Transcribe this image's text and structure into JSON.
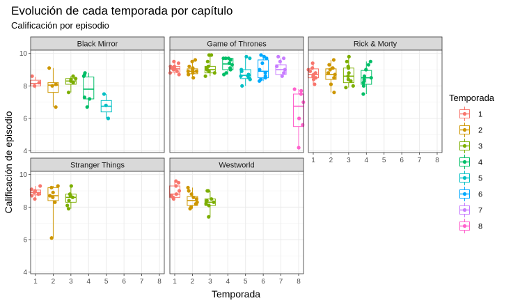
{
  "chart_data": {
    "type": "boxplot+jitter",
    "title": "Evolución de cada temporada por capítulo",
    "subtitle": "Calificación por episodio",
    "xlabel": "Temporada",
    "ylabel": "Calificación de episodio",
    "x_categories": [
      "1",
      "2",
      "3",
      "4",
      "5",
      "6",
      "7",
      "8"
    ],
    "ylim": [
      3.9,
      10.2
    ],
    "y_ticks": [
      4,
      6,
      8,
      10
    ],
    "legend": {
      "title": "Temporada",
      "placement": "right",
      "entries": [
        "1",
        "2",
        "3",
        "4",
        "5",
        "6",
        "7",
        "8"
      ]
    },
    "season_colors": {
      "1": "#F8766D",
      "2": "#CD9600",
      "3": "#7CAE00",
      "4": "#00BE67",
      "5": "#00BFC4",
      "6": "#00A9FF",
      "7": "#C77CFF",
      "8": "#FF61CC"
    },
    "panels": [
      {
        "name": "Black Mirror",
        "seasons": [
          {
            "season": 1,
            "q1": 8.0,
            "median": 8.15,
            "q3": 8.35,
            "lower": 7.85,
            "upper": 8.55,
            "points": [
              8.0,
              8.2,
              8.6
            ]
          },
          {
            "season": 2,
            "q1": 7.6,
            "median": 8.05,
            "q3": 8.2,
            "lower": 6.7,
            "upper": 9.1,
            "points": [
              6.7,
              8.0,
              8.1,
              9.1
            ]
          },
          {
            "season": 3,
            "q1": 8.1,
            "median": 8.3,
            "q3": 8.45,
            "lower": 7.6,
            "upper": 8.6,
            "points": [
              7.6,
              8.2,
              8.3,
              8.4,
              8.45,
              8.6
            ]
          },
          {
            "season": 4,
            "q1": 7.2,
            "median": 7.8,
            "q3": 8.55,
            "lower": 6.7,
            "upper": 8.8,
            "points": [
              6.7,
              7.2,
              7.3,
              8.6,
              8.7,
              8.8
            ]
          },
          {
            "season": 5,
            "q1": 6.4,
            "median": 6.75,
            "q3": 7.1,
            "lower": 6.0,
            "upper": 7.5,
            "points": [
              6.0,
              6.8,
              7.5
            ]
          }
        ]
      },
      {
        "name": "Game of Thrones",
        "seasons": [
          {
            "season": 1,
            "q1": 8.85,
            "median": 9.05,
            "q3": 9.2,
            "lower": 8.7,
            "upper": 9.5,
            "points": [
              8.7,
              8.8,
              8.9,
              9.0,
              9.05,
              9.1,
              9.2,
              9.2,
              9.4,
              9.5
            ]
          },
          {
            "season": 2,
            "q1": 8.75,
            "median": 8.9,
            "q3": 9.05,
            "lower": 8.5,
            "upper": 9.6,
            "points": [
              8.5,
              8.7,
              8.8,
              8.9,
              8.9,
              9.0,
              9.1,
              9.2,
              9.5,
              9.6
            ]
          },
          {
            "season": 3,
            "q1": 8.8,
            "median": 9.0,
            "q3": 9.2,
            "lower": 8.6,
            "upper": 9.9,
            "points": [
              8.6,
              8.8,
              8.9,
              9.0,
              9.0,
              9.1,
              9.2,
              9.5,
              9.9,
              9.9
            ]
          },
          {
            "season": 4,
            "q1": 9.0,
            "median": 9.35,
            "q3": 9.7,
            "lower": 8.7,
            "upper": 9.7,
            "points": [
              8.7,
              8.8,
              9.0,
              9.1,
              9.3,
              9.4,
              9.6,
              9.7,
              9.7,
              9.7
            ]
          },
          {
            "season": 5,
            "q1": 8.45,
            "median": 8.65,
            "q3": 9.0,
            "lower": 8.0,
            "upper": 9.8,
            "points": [
              8.0,
              8.4,
              8.5,
              8.6,
              8.6,
              8.7,
              8.9,
              9.0,
              9.7,
              9.8
            ]
          },
          {
            "season": 6,
            "q1": 8.5,
            "median": 8.9,
            "q3": 9.6,
            "lower": 8.3,
            "upper": 9.9,
            "points": [
              8.3,
              8.4,
              8.5,
              8.6,
              8.8,
              9.0,
              9.4,
              9.7,
              9.8,
              9.9
            ]
          },
          {
            "season": 7,
            "q1": 8.7,
            "median": 9.0,
            "q3": 9.3,
            "lower": 8.6,
            "upper": 9.7,
            "points": [
              8.6,
              8.8,
              9.0,
              9.2,
              9.5,
              9.7,
              9.8
            ]
          },
          {
            "season": 8,
            "q1": 5.5,
            "median": 6.75,
            "q3": 7.5,
            "lower": 4.2,
            "upper": 7.8,
            "points": [
              4.2,
              5.6,
              6.0,
              7.0,
              7.5,
              7.7,
              7.8
            ]
          }
        ]
      },
      {
        "name": "Rick & Morty",
        "seasons": [
          {
            "season": 1,
            "q1": 8.5,
            "median": 8.7,
            "q3": 9.05,
            "lower": 8.1,
            "upper": 9.4,
            "points": [
              8.1,
              8.4,
              8.5,
              8.6,
              8.7,
              8.8,
              8.9,
              9.0,
              9.1,
              9.4
            ]
          },
          {
            "season": 2,
            "q1": 8.4,
            "median": 8.7,
            "q3": 9.05,
            "lower": 7.6,
            "upper": 9.6,
            "points": [
              7.6,
              8.1,
              8.5,
              8.7,
              8.8,
              9.0,
              9.1,
              9.3,
              9.6
            ]
          },
          {
            "season": 3,
            "q1": 8.2,
            "median": 8.6,
            "q3": 9.1,
            "lower": 7.9,
            "upper": 9.8,
            "points": [
              7.9,
              8.0,
              8.3,
              8.4,
              8.6,
              8.8,
              9.1,
              9.2,
              9.5,
              9.8
            ]
          },
          {
            "season": 4,
            "q1": 8.1,
            "median": 8.5,
            "q3": 8.95,
            "lower": 7.5,
            "upper": 9.5,
            "points": [
              7.5,
              8.0,
              8.2,
              8.3,
              8.4,
              8.5,
              8.6,
              9.0,
              9.3,
              9.5
            ]
          }
        ]
      },
      {
        "name": "Stranger Things",
        "seasons": [
          {
            "season": 1,
            "q1": 8.75,
            "median": 8.9,
            "q3": 9.05,
            "lower": 8.5,
            "upper": 9.3,
            "points": [
              8.5,
              8.7,
              8.8,
              8.9,
              9.0,
              9.1,
              9.3
            ]
          },
          {
            "season": 2,
            "q1": 8.4,
            "median": 8.7,
            "q3": 9.2,
            "lower": 6.1,
            "upper": 9.3,
            "points": [
              6.1,
              6.1,
              8.3,
              8.6,
              8.7,
              8.9,
              9.2,
              9.3
            ]
          },
          {
            "season": 3,
            "q1": 8.3,
            "median": 8.6,
            "q3": 8.8,
            "lower": 7.9,
            "upper": 9.3,
            "points": [
              7.9,
              8.1,
              8.4,
              8.6,
              8.7,
              8.8,
              9.3
            ]
          }
        ]
      },
      {
        "name": "Westworld",
        "seasons": [
          {
            "season": 1,
            "q1": 8.6,
            "median": 8.8,
            "q3": 9.3,
            "lower": 8.5,
            "upper": 9.6,
            "points": [
              8.5,
              8.6,
              8.7,
              8.8,
              9.0,
              9.3,
              9.5,
              9.6
            ]
          },
          {
            "season": 2,
            "q1": 8.1,
            "median": 8.4,
            "q3": 8.65,
            "lower": 7.9,
            "upper": 9.2,
            "points": [
              7.9,
              8.0,
              8.2,
              8.3,
              8.5,
              8.6,
              8.8,
              9.0,
              9.2
            ]
          },
          {
            "season": 3,
            "q1": 8.1,
            "median": 8.3,
            "q3": 8.5,
            "lower": 7.4,
            "upper": 9.0,
            "points": [
              7.4,
              8.1,
              8.2,
              8.3,
              8.4,
              8.5,
              9.0,
              9.0
            ]
          }
        ]
      }
    ]
  }
}
